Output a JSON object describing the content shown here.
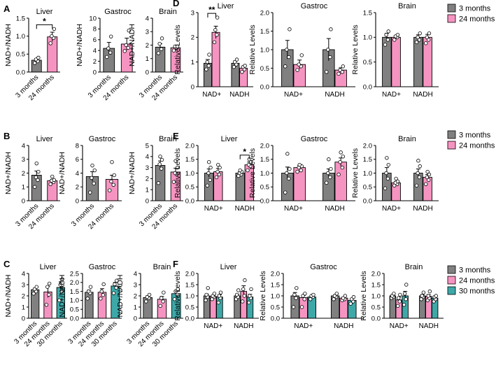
{
  "colors": {
    "m3": "#808080",
    "m24": "#F694C1",
    "m30": "#3EA8A8"
  },
  "legends": [
    {
      "row": "A",
      "entries": [
        "3 months",
        "24 months"
      ]
    },
    {
      "row": "E",
      "entries": [
        "3 months",
        "24 months"
      ]
    },
    {
      "row": "F",
      "entries": [
        "3 months",
        "24 months",
        "30 months"
      ]
    }
  ],
  "chart_data": [
    {
      "label": "A",
      "title": "Liver",
      "type": "bar",
      "mode": "ratio",
      "ylabel": "NAD+/NADH",
      "ylim": [
        0,
        1.5
      ],
      "yticks": [
        "0.0",
        "0.5",
        "1.0",
        "1.5"
      ],
      "categories": [
        "3 months",
        "24 months"
      ],
      "values": [
        0.33,
        0.98
      ],
      "errors": [
        0.05,
        0.13
      ],
      "points": [
        [
          0.25,
          0.3,
          0.35,
          0.4
        ],
        [
          0.8,
          0.95,
          1.0,
          1.2
        ]
      ],
      "significance": [
        {
          "text": "*",
          "from": 0,
          "to": 1
        }
      ]
    },
    {
      "label": "",
      "title": "Gastroc",
      "type": "bar",
      "mode": "ratio",
      "ylabel": "NAD+/NADH",
      "ylim": [
        0,
        10
      ],
      "yticks": [
        "0",
        "2",
        "4",
        "6",
        "8",
        "10"
      ],
      "categories": [
        "3 months",
        "24 months"
      ],
      "values": [
        4.4,
        5.2
      ],
      "errors": [
        1.1,
        1.1
      ],
      "points": [
        [
          2.8,
          3.6,
          4.4,
          6.6
        ],
        [
          3.9,
          4.5,
          5.0,
          7.7
        ]
      ]
    },
    {
      "label": "",
      "title": "Brain",
      "type": "bar",
      "mode": "ratio",
      "ylabel": "NAD+/NADH",
      "ylim": [
        0,
        4
      ],
      "yticks": [
        "0",
        "1",
        "2",
        "3",
        "4"
      ],
      "categories": [
        "3 months",
        "24 months"
      ],
      "values": [
        1.85,
        1.8
      ],
      "errors": [
        0.25,
        0.15
      ],
      "points": [
        [
          1.4,
          1.7,
          2.1,
          2.5
        ],
        [
          1.6,
          1.8,
          1.9,
          1.9
        ]
      ]
    },
    {
      "label": "D",
      "title": "Liver",
      "type": "bar",
      "mode": "grouped",
      "ylabel": "Relative Levels",
      "ylim": [
        0,
        3
      ],
      "yticks": [
        "0",
        "1",
        "2",
        "3"
      ],
      "categories": [
        "NAD+",
        "NADH"
      ],
      "series": [
        {
          "name": "3 months",
          "values": [
            0.95,
            0.95
          ],
          "errors": [
            0.15,
            0.1
          ],
          "points": [
            [
              0.7,
              0.85,
              1.0,
              1.3
            ],
            [
              0.8,
              0.9,
              1.0,
              1.1
            ]
          ]
        },
        {
          "name": "24 months",
          "values": [
            2.2,
            0.75
          ],
          "errors": [
            0.25,
            0.08
          ],
          "points": [
            [
              1.8,
              2.1,
              2.3,
              2.8
            ],
            [
              0.6,
              0.7,
              0.8,
              0.85
            ]
          ]
        }
      ],
      "significance": [
        {
          "text": "**",
          "group": 0
        }
      ]
    },
    {
      "label": "",
      "title": "Gastroc",
      "type": "bar",
      "mode": "grouped",
      "ylabel": "Relative Levels",
      "ylim": [
        0,
        2.0
      ],
      "yticks": [
        "0.0",
        "0.5",
        "1.0",
        "1.5",
        "2.0"
      ],
      "categories": [
        "NAD+",
        "NADH"
      ],
      "series": [
        {
          "name": "3 months",
          "values": [
            1.0,
            1.0
          ],
          "errors": [
            0.25,
            0.3
          ],
          "points": [
            [
              0.55,
              0.8,
              1.0,
              1.55
            ],
            [
              0.4,
              0.8,
              1.0,
              1.55
            ]
          ]
        },
        {
          "name": "24 months",
          "values": [
            0.6,
            0.45
          ],
          "errors": [
            0.12,
            0.06
          ],
          "points": [
            [
              0.45,
              0.55,
              0.6,
              0.85
            ],
            [
              0.35,
              0.4,
              0.45,
              0.55
            ]
          ]
        }
      ]
    },
    {
      "label": "",
      "title": "Brain",
      "type": "bar",
      "mode": "grouped",
      "ylabel": "Relative Levels",
      "ylim": [
        0,
        1.5
      ],
      "yticks": [
        "0.0",
        "0.5",
        "1.0",
        "1.5"
      ],
      "categories": [
        "NAD+",
        "NADH"
      ],
      "series": [
        {
          "name": "3 months",
          "values": [
            1.0,
            1.0
          ],
          "errors": [
            0.08,
            0.05
          ],
          "points": [
            [
              0.85,
              0.95,
              1.05,
              1.12
            ],
            [
              0.9,
              0.95,
              1.0,
              1.08
            ]
          ]
        },
        {
          "name": "24 months",
          "values": [
            1.0,
            1.0
          ],
          "errors": [
            0.04,
            0.06
          ],
          "points": [
            [
              0.95,
              1.0,
              1.02,
              1.05
            ],
            [
              0.88,
              0.95,
              1.0,
              1.08
            ]
          ]
        }
      ]
    },
    {
      "label": "B",
      "title": "Liver",
      "type": "bar",
      "mode": "ratio",
      "ylabel": "NAD+/NADH",
      "ylim": [
        0,
        4
      ],
      "yticks": [
        "0",
        "1",
        "2",
        "3",
        "4"
      ],
      "categories": [
        "3 months",
        "24 months"
      ],
      "values": [
        1.85,
        1.45
      ],
      "errors": [
        0.3,
        0.1
      ],
      "points": [
        [
          1.0,
          1.5,
          1.7,
          2.1,
          2.7
        ],
        [
          1.2,
          1.35,
          1.45,
          1.5,
          1.75
        ]
      ]
    },
    {
      "label": "",
      "title": "Gastroc",
      "type": "bar",
      "mode": "ratio",
      "ylabel": "NAD+/NADH",
      "ylim": [
        0,
        8
      ],
      "yticks": [
        "0",
        "2",
        "4",
        "6",
        "8"
      ],
      "categories": [
        "3 months",
        "24 months"
      ],
      "values": [
        3.5,
        3.1
      ],
      "errors": [
        0.7,
        0.6
      ],
      "points": [
        [
          1.2,
          2.5,
          3.3,
          4.4,
          5.1
        ],
        [
          1.5,
          2.3,
          2.8,
          3.7,
          5.6
        ]
      ]
    },
    {
      "label": "",
      "title": "Brain",
      "type": "bar",
      "mode": "ratio",
      "ylabel": "NAD+/NADH",
      "ylim": [
        0,
        5
      ],
      "yticks": [
        "0",
        "1",
        "2",
        "3",
        "4",
        "5"
      ],
      "categories": [
        "3 months",
        "24 months"
      ],
      "values": [
        3.2,
        2.6
      ],
      "errors": [
        0.4,
        0.35
      ],
      "points": [
        [
          1.6,
          2.9,
          3.3,
          3.7,
          4.0
        ],
        [
          1.7,
          2.4,
          2.5,
          3.0,
          3.6
        ]
      ]
    },
    {
      "label": "E",
      "title": "Liver",
      "type": "bar",
      "mode": "grouped",
      "ylabel": "Relative Levels",
      "ylim": [
        0,
        2.0
      ],
      "yticks": [
        "0.0",
        "0.5",
        "1.0",
        "1.5",
        "2.0"
      ],
      "categories": [
        "NAD+",
        "NADH"
      ],
      "series": [
        {
          "name": "3 months",
          "values": [
            1.0,
            1.0
          ],
          "errors": [
            0.15,
            0.05
          ],
          "points": [
            [
              0.55,
              0.75,
              1.0,
              1.2,
              1.4
            ],
            [
              0.9,
              0.95,
              1.0,
              1.05,
              1.1
            ]
          ]
        },
        {
          "name": "24 months",
          "values": [
            1.05,
            1.3
          ],
          "errors": [
            0.12,
            0.1
          ],
          "points": [
            [
              0.85,
              0.95,
              1.05,
              1.2,
              1.3
            ],
            [
              1.1,
              1.25,
              1.3,
              1.4,
              1.5
            ]
          ]
        }
      ],
      "significance": [
        {
          "text": "*",
          "group": 1
        }
      ]
    },
    {
      "label": "",
      "title": "Gastroc",
      "type": "bar",
      "mode": "grouped",
      "ylabel": "Relative Levels",
      "ylim": [
        0,
        2.0
      ],
      "yticks": [
        "0.0",
        "0.5",
        "1.0",
        "1.5",
        "2.0"
      ],
      "categories": [
        "NAD+",
        "NADH"
      ],
      "series": [
        {
          "name": "3 months",
          "values": [
            1.0,
            1.0
          ],
          "errors": [
            0.22,
            0.15
          ],
          "points": [
            [
              0.3,
              0.8,
              1.0,
              1.15,
              1.7
            ],
            [
              0.65,
              0.85,
              1.0,
              1.15,
              1.5
            ]
          ]
        },
        {
          "name": "24 months",
          "values": [
            1.2,
            1.4
          ],
          "errors": [
            0.07,
            0.15
          ],
          "points": [
            [
              1.05,
              1.1,
              1.2,
              1.25,
              1.3
            ],
            [
              0.95,
              1.2,
              1.4,
              1.6,
              1.75
            ]
          ]
        }
      ]
    },
    {
      "label": "",
      "title": "Brain",
      "type": "bar",
      "mode": "grouped",
      "ylabel": "Relative Levels",
      "ylim": [
        0,
        2.0
      ],
      "yticks": [
        "0.0",
        "0.5",
        "1.0",
        "1.5",
        "2.0"
      ],
      "categories": [
        "NAD+",
        "NADH"
      ],
      "series": [
        {
          "name": "3 months",
          "values": [
            1.0,
            1.0
          ],
          "errors": [
            0.2,
            0.15
          ],
          "points": [
            [
              0.45,
              0.8,
              1.0,
              1.3,
              1.55
            ],
            [
              0.55,
              0.85,
              1.0,
              1.25,
              1.45
            ]
          ]
        },
        {
          "name": "24 months",
          "values": [
            0.65,
            0.85
          ],
          "errors": [
            0.05,
            0.1
          ],
          "points": [
            [
              0.55,
              0.6,
              0.65,
              0.7,
              0.8
            ],
            [
              0.6,
              0.75,
              0.85,
              0.95,
              1.05
            ]
          ]
        }
      ]
    },
    {
      "label": "C",
      "title": "Liver",
      "type": "bar",
      "mode": "ratio",
      "ylabel": "NAD+/NADH",
      "ylim": [
        0,
        4
      ],
      "yticks": [
        "0",
        "1",
        "2",
        "3",
        "4"
      ],
      "categories": [
        "3 months",
        "24 months",
        "30 months"
      ],
      "values": [
        2.55,
        2.35,
        2.75
      ],
      "errors": [
        0.15,
        0.5,
        0.5
      ],
      "points": [
        [
          2.2,
          2.4,
          2.6,
          2.8
        ],
        [
          1.2,
          2.1,
          2.8,
          3.1
        ],
        [
          1.6,
          2.4,
          3.0,
          3.5
        ]
      ]
    },
    {
      "label": "",
      "title": "Gastroc",
      "type": "bar",
      "mode": "ratio",
      "ylabel": "NAD+/NADH",
      "ylim": [
        0,
        2.5
      ],
      "yticks": [
        "0.0",
        "0.5",
        "1.0",
        "1.5",
        "2.0",
        "2.5"
      ],
      "categories": [
        "3 months",
        "24 months",
        "30 months"
      ],
      "values": [
        1.45,
        1.45,
        1.8
      ],
      "errors": [
        0.12,
        0.2,
        0.2
      ],
      "points": [
        [
          1.1,
          1.4,
          1.5,
          1.75
        ],
        [
          1.1,
          1.3,
          1.5,
          1.9
        ],
        [
          1.4,
          1.7,
          1.9,
          2.1
        ]
      ]
    },
    {
      "label": "",
      "title": "Brain",
      "type": "bar",
      "mode": "ratio",
      "ylabel": "NAD+/NADH",
      "ylim": [
        0,
        4
      ],
      "yticks": [
        "0",
        "1",
        "2",
        "3",
        "4"
      ],
      "categories": [
        "3 months",
        "24 months",
        "30 months"
      ],
      "values": [
        1.85,
        1.7,
        2.2
      ],
      "errors": [
        0.15,
        0.25,
        0.3
      ],
      "points": [
        [
          1.5,
          1.8,
          1.9,
          2.1
        ],
        [
          1.1,
          1.5,
          1.8,
          2.3
        ],
        [
          1.7,
          2.1,
          2.4,
          2.6
        ]
      ]
    },
    {
      "label": "F",
      "title": "Liver",
      "type": "bar",
      "mode": "grouped",
      "ylabel": "Relative Levels",
      "ylim": [
        0,
        2.0
      ],
      "yticks": [
        "0.0",
        "0.5",
        "1.0",
        "1.5",
        "2.0"
      ],
      "categories": [
        "NAD+",
        "NADH"
      ],
      "series": [
        {
          "name": "3 months",
          "values": [
            1.0,
            1.0
          ],
          "errors": [
            0.08,
            0.07
          ],
          "points": [
            [
              0.8,
              0.95,
              1.05,
              1.35
            ],
            [
              0.85,
              0.95,
              1.05,
              1.25
            ]
          ]
        },
        {
          "name": "24 months",
          "values": [
            0.98,
            1.2
          ],
          "errors": [
            0.05,
            0.25
          ],
          "points": [
            [
              0.85,
              0.95,
              1.0,
              1.1
            ],
            [
              0.75,
              1.0,
              1.3,
              1.7
            ]
          ]
        },
        {
          "name": "30 months",
          "values": [
            0.95,
            0.95
          ],
          "errors": [
            0.1,
            0.12
          ],
          "points": [
            [
              0.7,
              0.9,
              1.0,
              1.15
            ],
            [
              0.7,
              0.9,
              1.0,
              1.3
            ]
          ]
        }
      ]
    },
    {
      "label": "",
      "title": "Gastroc",
      "type": "bar",
      "mode": "grouped",
      "ylabel": "Relative Levels",
      "ylim": [
        0,
        2.0
      ],
      "yticks": [
        "0.0",
        "0.5",
        "1.0",
        "1.5",
        "2.0"
      ],
      "categories": [
        "NAD+",
        "NADH"
      ],
      "series": [
        {
          "name": "3 months",
          "values": [
            1.0,
            1.0
          ],
          "errors": [
            0.15,
            0.05
          ],
          "points": [
            [
              0.5,
              0.9,
              1.05,
              1.35
            ],
            [
              0.85,
              0.95,
              1.0,
              1.1
            ]
          ]
        },
        {
          "name": "24 months",
          "values": [
            0.92,
            0.9
          ],
          "errors": [
            0.1,
            0.05
          ],
          "points": [
            [
              0.5,
              0.85,
              1.0,
              1.1
            ],
            [
              0.8,
              0.85,
              0.9,
              1.0
            ]
          ]
        },
        {
          "name": "30 months",
          "values": [
            0.95,
            0.8
          ],
          "errors": [
            0.05,
            0.08
          ],
          "points": [
            [
              0.85,
              0.95,
              1.0,
              1.05
            ],
            [
              0.65,
              0.75,
              0.85,
              0.95
            ]
          ]
        }
      ]
    },
    {
      "label": "",
      "title": "Brain",
      "type": "bar",
      "mode": "grouped",
      "ylabel": "Relative Levels",
      "ylim": [
        0,
        2.0
      ],
      "yticks": [
        "0.0",
        "0.5",
        "1.0",
        "1.5",
        "2.0"
      ],
      "categories": [
        "NAD+",
        "NADH"
      ],
      "series": [
        {
          "name": "3 months",
          "values": [
            1.0,
            1.0
          ],
          "errors": [
            0.05,
            0.06
          ],
          "points": [
            [
              0.9,
              0.95,
              1.0,
              1.1
            ],
            [
              0.85,
              0.95,
              1.0,
              1.15
            ]
          ]
        },
        {
          "name": "24 months",
          "values": [
            0.82,
            0.98
          ],
          "errors": [
            0.12,
            0.08
          ],
          "points": [
            [
              0.55,
              0.75,
              0.9,
              1.05
            ],
            [
              0.8,
              0.9,
              1.0,
              1.2
            ]
          ]
        },
        {
          "name": "30 months",
          "values": [
            1.0,
            0.9
          ],
          "errors": [
            0.2,
            0.08
          ],
          "points": [
            [
              0.6,
              0.85,
              1.1,
              1.5
            ],
            [
              0.75,
              0.85,
              0.95,
              1.0
            ]
          ]
        }
      ]
    }
  ]
}
